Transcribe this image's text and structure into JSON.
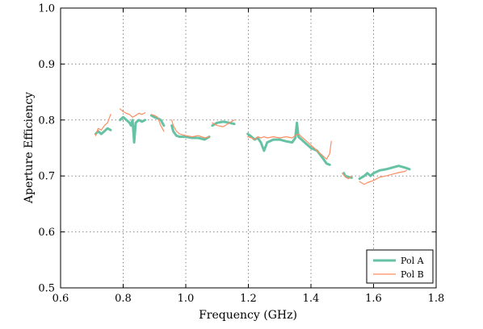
{
  "chart_data": {
    "type": "line",
    "xlabel": "Frequency (GHz)",
    "ylabel": "Aperture Efficiency",
    "xlim": [
      0.6,
      1.8
    ],
    "ylim": [
      0.5,
      1.0
    ],
    "xticks": [
      "0.6",
      "0.8",
      "1.0",
      "1.2",
      "1.4",
      "1.6",
      "1.8"
    ],
    "yticks": [
      "0.5",
      "0.6",
      "0.7",
      "0.8",
      "0.9",
      "1.0"
    ],
    "grid": true,
    "legend_position": "lower-right",
    "series": [
      {
        "name": "Pol A",
        "color": "#66c2a5",
        "segments": [
          [
            [
              0.712,
              0.775
            ],
            [
              0.72,
              0.78
            ],
            [
              0.73,
              0.775
            ],
            [
              0.74,
              0.78
            ],
            [
              0.75,
              0.785
            ],
            [
              0.76,
              0.782
            ]
          ],
          [
            [
              0.79,
              0.8
            ],
            [
              0.8,
              0.805
            ],
            [
              0.81,
              0.8
            ],
            [
              0.82,
              0.795
            ],
            [
              0.825,
              0.79
            ],
            [
              0.83,
              0.8
            ],
            [
              0.835,
              0.76
            ],
            [
              0.84,
              0.795
            ],
            [
              0.85,
              0.8
            ],
            [
              0.86,
              0.797
            ],
            [
              0.87,
              0.8
            ]
          ],
          [
            [
              0.89,
              0.808
            ],
            [
              0.9,
              0.805
            ],
            [
              0.91,
              0.803
            ],
            [
              0.92,
              0.8
            ],
            [
              0.93,
              0.79
            ]
          ],
          [
            [
              0.955,
              0.79
            ],
            [
              0.96,
              0.78
            ],
            [
              0.97,
              0.772
            ],
            [
              0.98,
              0.77
            ],
            [
              1.0,
              0.77
            ],
            [
              1.02,
              0.768
            ],
            [
              1.04,
              0.768
            ],
            [
              1.06,
              0.765
            ],
            [
              1.075,
              0.77
            ]
          ],
          [
            [
              1.085,
              0.79
            ],
            [
              1.1,
              0.795
            ],
            [
              1.12,
              0.797
            ],
            [
              1.14,
              0.795
            ],
            [
              1.155,
              0.793
            ]
          ],
          [
            [
              1.198,
              0.775
            ],
            [
              1.21,
              0.77
            ],
            [
              1.22,
              0.765
            ],
            [
              1.23,
              0.768
            ],
            [
              1.24,
              0.76
            ],
            [
              1.25,
              0.745
            ],
            [
              1.26,
              0.76
            ],
            [
              1.28,
              0.765
            ],
            [
              1.3,
              0.765
            ],
            [
              1.32,
              0.762
            ],
            [
              1.34,
              0.76
            ],
            [
              1.35,
              0.768
            ],
            [
              1.355,
              0.795
            ],
            [
              1.36,
              0.77
            ],
            [
              1.38,
              0.76
            ],
            [
              1.4,
              0.75
            ],
            [
              1.42,
              0.745
            ],
            [
              1.44,
              0.73
            ],
            [
              1.45,
              0.722
            ],
            [
              1.46,
              0.72
            ]
          ],
          [
            [
              1.505,
              0.705
            ],
            [
              1.51,
              0.7
            ],
            [
              1.52,
              0.698
            ],
            [
              1.53,
              0.697
            ]
          ],
          [
            [
              1.555,
              0.695
            ],
            [
              1.57,
              0.7
            ],
            [
              1.58,
              0.705
            ],
            [
              1.59,
              0.7
            ],
            [
              1.6,
              0.705
            ],
            [
              1.62,
              0.71
            ],
            [
              1.64,
              0.712
            ],
            [
              1.66,
              0.715
            ],
            [
              1.68,
              0.718
            ],
            [
              1.7,
              0.715
            ],
            [
              1.715,
              0.712
            ]
          ]
        ]
      },
      {
        "name": "Pol B",
        "color": "#fc8d62",
        "segments": [
          [
            [
              0.712,
              0.772
            ],
            [
              0.72,
              0.785
            ],
            [
              0.73,
              0.782
            ],
            [
              0.74,
              0.79
            ],
            [
              0.75,
              0.795
            ],
            [
              0.76,
              0.81
            ]
          ],
          [
            [
              0.79,
              0.82
            ],
            [
              0.8,
              0.815
            ],
            [
              0.81,
              0.812
            ],
            [
              0.82,
              0.81
            ],
            [
              0.83,
              0.805
            ],
            [
              0.84,
              0.808
            ],
            [
              0.85,
              0.812
            ],
            [
              0.86,
              0.81
            ],
            [
              0.87,
              0.813
            ]
          ],
          [
            [
              0.89,
              0.81
            ],
            [
              0.9,
              0.808
            ],
            [
              0.91,
              0.805
            ],
            [
              0.92,
              0.79
            ],
            [
              0.93,
              0.78
            ]
          ],
          [
            [
              0.955,
              0.8
            ],
            [
              0.96,
              0.79
            ],
            [
              0.97,
              0.78
            ],
            [
              0.98,
              0.775
            ],
            [
              1.0,
              0.772
            ],
            [
              1.02,
              0.77
            ],
            [
              1.04,
              0.772
            ],
            [
              1.06,
              0.768
            ],
            [
              1.075,
              0.77
            ]
          ],
          [
            [
              1.085,
              0.795
            ],
            [
              1.1,
              0.79
            ],
            [
              1.12,
              0.788
            ],
            [
              1.14,
              0.795
            ],
            [
              1.155,
              0.8
            ]
          ],
          [
            [
              1.198,
              0.77
            ],
            [
              1.21,
              0.768
            ],
            [
              1.22,
              0.765
            ],
            [
              1.23,
              0.77
            ],
            [
              1.24,
              0.768
            ],
            [
              1.25,
              0.77
            ],
            [
              1.26,
              0.768
            ],
            [
              1.28,
              0.77
            ],
            [
              1.3,
              0.768
            ],
            [
              1.32,
              0.77
            ],
            [
              1.34,
              0.768
            ],
            [
              1.35,
              0.772
            ],
            [
              1.36,
              0.775
            ],
            [
              1.38,
              0.765
            ],
            [
              1.4,
              0.755
            ],
            [
              1.42,
              0.745
            ],
            [
              1.44,
              0.735
            ],
            [
              1.45,
              0.73
            ],
            [
              1.46,
              0.74
            ],
            [
              1.465,
              0.762
            ]
          ],
          [
            [
              1.5,
              0.705
            ],
            [
              1.51,
              0.698
            ],
            [
              1.52,
              0.695
            ],
            [
              1.53,
              0.7
            ]
          ],
          [
            [
              1.555,
              0.69
            ],
            [
              1.57,
              0.685
            ],
            [
              1.58,
              0.688
            ],
            [
              1.6,
              0.692
            ],
            [
              1.62,
              0.698
            ],
            [
              1.64,
              0.7
            ],
            [
              1.66,
              0.703
            ],
            [
              1.68,
              0.706
            ],
            [
              1.7,
              0.708
            ],
            [
              1.705,
              0.71
            ]
          ]
        ]
      }
    ]
  }
}
